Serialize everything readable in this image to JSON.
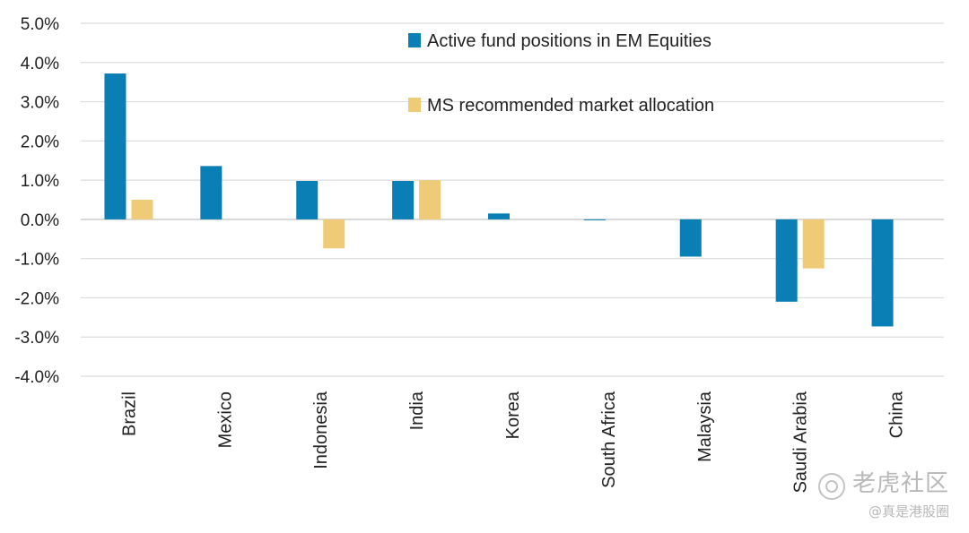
{
  "chart_data": {
    "type": "bar",
    "categories": [
      "Brazil",
      "Mexico",
      "Indonesia",
      "India",
      "Korea",
      "South Africa",
      "Malaysia",
      "Saudi Arabia",
      "China"
    ],
    "series": [
      {
        "name": "Active fund positions in EM Equities",
        "color": "#0a7fb5",
        "values": [
          3.72,
          1.36,
          0.98,
          0.98,
          0.15,
          -0.02,
          -0.95,
          -2.1,
          -2.73
        ]
      },
      {
        "name": "MS recommended market allocation",
        "color": "#efcb78",
        "values": [
          0.5,
          0.0,
          -0.74,
          1.0,
          0.0,
          0.0,
          0.0,
          -1.25,
          0.0
        ]
      }
    ],
    "yticks": [
      "5.0%",
      "4.0%",
      "3.0%",
      "2.0%",
      "1.0%",
      "0.0%",
      "-1.0%",
      "-2.0%",
      "-3.0%",
      "-4.0%"
    ],
    "ylim": [
      -4,
      5
    ],
    "title": "",
    "xlabel": "",
    "ylabel": "",
    "grid": true,
    "legend_position": "top-right"
  },
  "watermark": {
    "main": "老虎社区",
    "sub": "@真是港股圈"
  }
}
